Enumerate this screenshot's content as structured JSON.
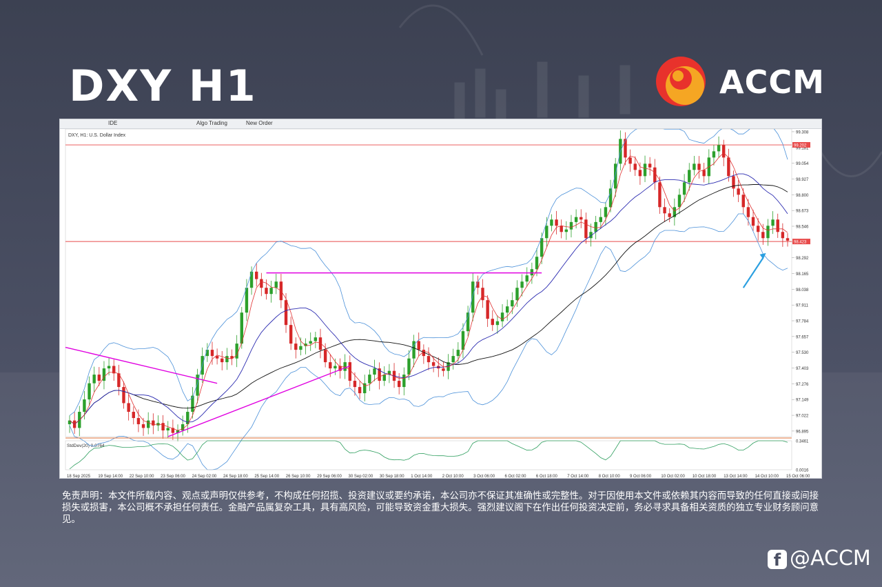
{
  "header": {
    "title": "DXY H1",
    "brand": "ACCM"
  },
  "toolbar": {
    "ide_label": "IDE",
    "algo_label": "Algo Trading",
    "order_label": "New Order"
  },
  "chart_data": {
    "type": "candlestick",
    "symbol_label": "DXY, H1:  U.S. Dollar Index",
    "y_ticks": [
      "99.308",
      "99.181",
      "99.054",
      "98.927",
      "98.800",
      "98.673",
      "98.546",
      "98.419",
      "98.292",
      "98.165",
      "98.038",
      "97.911",
      "97.784",
      "97.657",
      "97.530",
      "97.403",
      "97.276",
      "97.149",
      "97.022",
      "96.895"
    ],
    "ylim": [
      96.85,
      99.33
    ],
    "horizontal_levels": [
      {
        "value": 99.202,
        "label": "99.202",
        "color": "#e84a4a"
      },
      {
        "value": 98.423,
        "label": "98.423",
        "color": "#e84a4a"
      }
    ],
    "resistance_line": {
      "value": 98.17,
      "color": "#e000e0"
    },
    "x_labels": [
      "18 Sep 2025",
      "19 Sep 14:00",
      "22 Sep 10:00",
      "23 Sep 06:00",
      "24 Sep 02:00",
      "24 Sep 18:00",
      "25 Sep 14:00",
      "26 Sep 10:00",
      "29 Sep 06:00",
      "30 Sep 02:00",
      "30 Sep 18:00",
      "1 Oct 14:00",
      "2 Oct 10:00",
      "3 Oct 06:00",
      "6 Oct 02:00",
      "6 Oct 18:00",
      "7 Oct 14:00",
      "8 Oct 10:00",
      "9 Oct 06:00",
      "10 Oct 02:00",
      "10 Oct 18:00",
      "13 Oct 14:00",
      "14 Oct 10:00",
      "15 Oct 06:00"
    ],
    "close_path": [
      96.98,
      96.92,
      97.05,
      97.15,
      97.28,
      97.35,
      97.3,
      97.4,
      97.42,
      97.36,
      97.25,
      97.12,
      97.05,
      97.0,
      96.95,
      96.92,
      96.98,
      96.94,
      96.96,
      96.9,
      96.92,
      96.88,
      96.9,
      96.95,
      97.05,
      97.18,
      97.35,
      97.5,
      97.55,
      97.5,
      97.48,
      97.45,
      97.5,
      97.48,
      97.6,
      97.85,
      98.05,
      98.18,
      98.12,
      98.05,
      98.0,
      98.05,
      98.1,
      97.95,
      97.75,
      97.6,
      97.55,
      97.58,
      97.6,
      97.62,
      97.65,
      97.55,
      97.45,
      97.4,
      97.42,
      97.38,
      97.45,
      97.3,
      97.25,
      97.2,
      97.28,
      97.35,
      97.4,
      97.3,
      97.35,
      97.38,
      97.3,
      97.25,
      97.35,
      97.48,
      97.62,
      97.55,
      97.5,
      97.45,
      97.42,
      97.4,
      97.38,
      97.45,
      97.5,
      97.55,
      97.7,
      97.85,
      98.1,
      98.05,
      97.95,
      97.8,
      97.75,
      97.78,
      97.85,
      97.9,
      97.95,
      98.05,
      98.1,
      98.15,
      98.2,
      98.3,
      98.45,
      98.55,
      98.6,
      98.55,
      98.5,
      98.52,
      98.58,
      98.62,
      98.6,
      98.45,
      98.5,
      98.58,
      98.62,
      98.7,
      98.85,
      99.05,
      99.25,
      99.1,
      99.05,
      99.0,
      98.95,
      99.05,
      99.02,
      98.9,
      98.7,
      98.65,
      98.62,
      98.7,
      98.8,
      98.9,
      99.0,
      99.05,
      99.0,
      98.95,
      99.1,
      99.15,
      99.2,
      99.1,
      98.95,
      98.85,
      98.8,
      98.7,
      98.62,
      98.55,
      98.5,
      98.45,
      98.55,
      98.6,
      98.5,
      98.45,
      98.43
    ],
    "stddev_label": "StdDev(20) 0.0764",
    "stddev_ticks": [
      "0.3461",
      "0.0016"
    ],
    "stddev_ylim": [
      0.0016,
      0.3461
    ]
  },
  "disclaimer": "免责声明：本文件所载内容、观点或声明仅供参考，不构成任何招揽、投资建议或要约承诺，本公司亦不保证其准确性或完整性。对于因使用本文件或依赖其内容而导致的任何直接或间接损失或损害，本公司概不承担任何责任。金融产品属复杂工具，具有高风险，可能导致资金重大损失。强烈建议阁下在作出任何投资决定前，务必寻求具备相关资质的独立专业财务顾问意见。",
  "social": {
    "handle": "@ACCM",
    "icon": "social-f-icon"
  },
  "colors": {
    "bull": "#2ca02c",
    "bear": "#d62728",
    "ma_fast": "#e03030",
    "ma_mid": "#2a2ab0",
    "ma_slow": "#111111",
    "bands": "#4a90d9",
    "stddev": "#2e9e5e"
  }
}
